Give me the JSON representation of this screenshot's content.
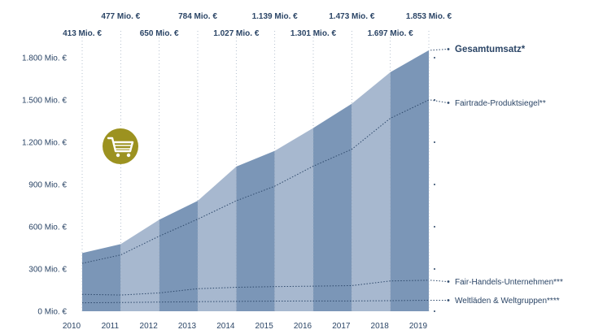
{
  "chart_data": {
    "type": "area",
    "x": [
      2010,
      2011,
      2012,
      2013,
      2014,
      2015,
      2016,
      2017,
      2018,
      2019
    ],
    "ylim": [
      0,
      1950
    ],
    "y_ticks": [
      0,
      300,
      600,
      900,
      1200,
      1500,
      1800
    ],
    "y_tick_labels": [
      "0 Mio. €",
      "300 Mio. €",
      "600 Mio. €",
      "900 Mio. €",
      "1.200 Mio. €",
      "1.500 Mio. €",
      "1.800 Mio. €"
    ],
    "total_labels": [
      "413 Mio. €",
      "477 Mio. €",
      "650 Mio. €",
      "784 Mio. €",
      "1.027 Mio. €",
      "1.139 Mio. €",
      "1.301 Mio. €",
      "1.473 Mio. €",
      "1.697 Mio. €",
      "1.853 Mio. €"
    ],
    "series": [
      {
        "name": "Gesamtumsatz*",
        "values": [
          413,
          477,
          650,
          784,
          1027,
          1139,
          1301,
          1473,
          1697,
          1853
        ]
      },
      {
        "name": "Fairtrade-Produktsiegel**",
        "values": [
          340,
          400,
          533,
          654,
          784,
          888,
          1030,
          1150,
          1370,
          1500
        ]
      },
      {
        "name": "Fair-Handels-Unternehmen***",
        "values": [
          120,
          115,
          130,
          160,
          170,
          175,
          178,
          182,
          215,
          220
        ]
      },
      {
        "name": "Weltläden & Weltgruppen****",
        "values": [
          60,
          62,
          65,
          68,
          70,
          72,
          73,
          73,
          75,
          78
        ]
      }
    ],
    "colors": {
      "band_dark": "#7b96b7",
      "band_light": "#a7b8cf",
      "text": "#2b4566",
      "grid_dots": "#9aa9bd",
      "cart_icon_bg": "#9c9220"
    },
    "icon": "shopping-cart-icon",
    "grid": "dotted vertical",
    "legend": "right"
  }
}
